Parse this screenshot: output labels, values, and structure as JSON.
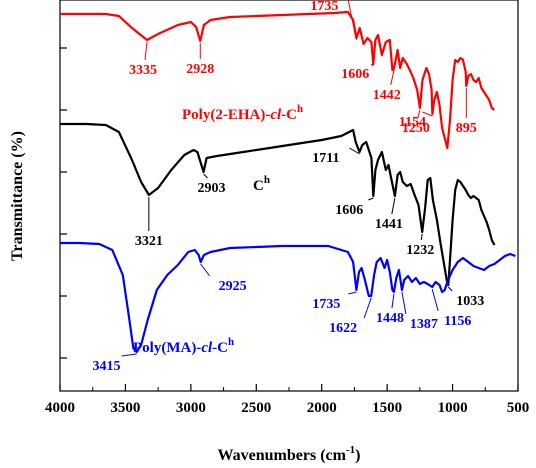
{
  "chart_data": {
    "type": "line",
    "xlabel": "Wavenumbers (cm",
    "xlabel_sup": "-1",
    "xlabel_tail": ")",
    "ylabel": "Transmittance (%)",
    "xlim": [
      4000,
      500
    ],
    "x_ticks": [
      "4000",
      "3500",
      "3000",
      "2500",
      "2000",
      "1500",
      "1000",
      "500"
    ],
    "grid": false,
    "series": [
      {
        "name_main": "Poly(2-EHA)-",
        "name_ital": "cl",
        "name_tail": "-C",
        "name_sup": "h",
        "color": "#ff0000",
        "points": [
          [
            4000,
            14
          ],
          [
            3800,
            14
          ],
          [
            3650,
            14
          ],
          [
            3550,
            16
          ],
          [
            3450,
            28
          ],
          [
            3335,
            40
          ],
          [
            3250,
            34
          ],
          [
            3100,
            25
          ],
          [
            3000,
            22
          ],
          [
            2960,
            27
          ],
          [
            2928,
            41
          ],
          [
            2900,
            25
          ],
          [
            2850,
            20
          ],
          [
            2700,
            17
          ],
          [
            2500,
            16
          ],
          [
            2300,
            15
          ],
          [
            2100,
            14
          ],
          [
            1900,
            13
          ],
          [
            1800,
            12
          ],
          [
            1760,
            20
          ],
          [
            1735,
            38
          ],
          [
            1710,
            28
          ],
          [
            1680,
            44
          ],
          [
            1650,
            38
          ],
          [
            1620,
            42
          ],
          [
            1606,
            64
          ],
          [
            1590,
            40
          ],
          [
            1570,
            35
          ],
          [
            1540,
            55
          ],
          [
            1510,
            42
          ],
          [
            1480,
            40
          ],
          [
            1460,
            70
          ],
          [
            1442,
            65
          ],
          [
            1420,
            50
          ],
          [
            1400,
            68
          ],
          [
            1380,
            58
          ],
          [
            1350,
            64
          ],
          [
            1320,
            72
          ],
          [
            1300,
            78
          ],
          [
            1270,
            90
          ],
          [
            1250,
            108
          ],
          [
            1230,
            80
          ],
          [
            1200,
            68
          ],
          [
            1180,
            74
          ],
          [
            1160,
            90
          ],
          [
            1154,
            114
          ],
          [
            1140,
            100
          ],
          [
            1120,
            92
          ],
          [
            1100,
            105
          ],
          [
            1080,
            128
          ],
          [
            1060,
            138
          ],
          [
            1040,
            148
          ],
          [
            1020,
            120
          ],
          [
            1000,
            80
          ],
          [
            980,
            60
          ],
          [
            960,
            62
          ],
          [
            940,
            58
          ],
          [
            920,
            60
          ],
          [
            900,
            72
          ],
          [
            895,
            86
          ],
          [
            880,
            76
          ],
          [
            860,
            74
          ],
          [
            840,
            80
          ],
          [
            820,
            82
          ],
          [
            800,
            78
          ],
          [
            780,
            88
          ],
          [
            760,
            92
          ],
          [
            740,
            96
          ],
          [
            720,
            100
          ],
          [
            700,
            108
          ],
          [
            680,
            110
          ]
        ],
        "annotations": [
          {
            "text": "3335",
            "x": 3335
          },
          {
            "text": "2928",
            "x": 2928
          },
          {
            "text": "1735",
            "x": 1735
          },
          {
            "text": "1606",
            "x": 1606
          },
          {
            "text": "1442",
            "x": 1442
          },
          {
            "text": "1250",
            "x": 1250
          },
          {
            "text": "1154",
            "x": 1154
          },
          {
            "text": "895",
            "x": 895
          }
        ]
      },
      {
        "name_main": "C",
        "name_ital": "",
        "name_tail": "",
        "name_sup": "h",
        "color": "#000000",
        "points": [
          [
            4000,
            124
          ],
          [
            3800,
            124
          ],
          [
            3650,
            125
          ],
          [
            3550,
            132
          ],
          [
            3450,
            160
          ],
          [
            3380,
            182
          ],
          [
            3321,
            195
          ],
          [
            3250,
            188
          ],
          [
            3150,
            170
          ],
          [
            3050,
            155
          ],
          [
            2980,
            150
          ],
          [
            2950,
            152
          ],
          [
            2903,
            172
          ],
          [
            2880,
            158
          ],
          [
            2800,
            156
          ],
          [
            2600,
            152
          ],
          [
            2400,
            148
          ],
          [
            2200,
            144
          ],
          [
            2000,
            140
          ],
          [
            1850,
            136
          ],
          [
            1760,
            130
          ],
          [
            1740,
            142
          ],
          [
            1711,
            152
          ],
          [
            1690,
            145
          ],
          [
            1660,
            142
          ],
          [
            1620,
            158
          ],
          [
            1606,
            196
          ],
          [
            1590,
            170
          ],
          [
            1570,
            160
          ],
          [
            1540,
            152
          ],
          [
            1510,
            170
          ],
          [
            1490,
            165
          ],
          [
            1470,
            178
          ],
          [
            1441,
            196
          ],
          [
            1420,
            175
          ],
          [
            1400,
            172
          ],
          [
            1380,
            182
          ],
          [
            1350,
            186
          ],
          [
            1320,
            184
          ],
          [
            1290,
            195
          ],
          [
            1260,
            205
          ],
          [
            1232,
            232
          ],
          [
            1210,
            208
          ],
          [
            1190,
            180
          ],
          [
            1170,
            178
          ],
          [
            1150,
            200
          ],
          [
            1120,
            220
          ],
          [
            1090,
            245
          ],
          [
            1060,
            268
          ],
          [
            1045,
            280
          ],
          [
            1033,
            285
          ],
          [
            1020,
            260
          ],
          [
            1000,
            220
          ],
          [
            980,
            190
          ],
          [
            960,
            180
          ],
          [
            940,
            182
          ],
          [
            920,
            186
          ],
          [
            900,
            190
          ],
          [
            880,
            195
          ],
          [
            860,
            198
          ],
          [
            840,
            196
          ],
          [
            800,
            200
          ],
          [
            780,
            210
          ],
          [
            760,
            216
          ],
          [
            740,
            222
          ],
          [
            720,
            230
          ],
          [
            700,
            240
          ],
          [
            680,
            245
          ]
        ],
        "annotations": [
          {
            "text": "3321",
            "x": 3321
          },
          {
            "text": "2903",
            "x": 2903
          },
          {
            "text": "1711",
            "x": 1711
          },
          {
            "text": "1606",
            "x": 1606
          },
          {
            "text": "1441",
            "x": 1441
          },
          {
            "text": "1232",
            "x": 1232
          },
          {
            "text": "1033",
            "x": 1033
          }
        ]
      },
      {
        "name_main": "Poly(MA)-",
        "name_ital": "cl",
        "name_tail": "-C",
        "name_sup": "h",
        "color": "#0000ff",
        "points": [
          [
            4000,
            243
          ],
          [
            3850,
            243
          ],
          [
            3700,
            244
          ],
          [
            3600,
            250
          ],
          [
            3520,
            275
          ],
          [
            3470,
            320
          ],
          [
            3440,
            348
          ],
          [
            3415,
            352
          ],
          [
            3380,
            345
          ],
          [
            3330,
            320
          ],
          [
            3260,
            290
          ],
          [
            3180,
            275
          ],
          [
            3100,
            265
          ],
          [
            3020,
            252
          ],
          [
            2970,
            250
          ],
          [
            2940,
            255
          ],
          [
            2925,
            262
          ],
          [
            2900,
            255
          ],
          [
            2850,
            252
          ],
          [
            2700,
            248
          ],
          [
            2500,
            247
          ],
          [
            2300,
            246
          ],
          [
            2100,
            246
          ],
          [
            1950,
            246
          ],
          [
            1800,
            252
          ],
          [
            1760,
            262
          ],
          [
            1735,
            290
          ],
          [
            1715,
            272
          ],
          [
            1695,
            268
          ],
          [
            1670,
            280
          ],
          [
            1640,
            296
          ],
          [
            1622,
            296
          ],
          [
            1600,
            275
          ],
          [
            1580,
            262
          ],
          [
            1550,
            258
          ],
          [
            1520,
            268
          ],
          [
            1500,
            260
          ],
          [
            1480,
            272
          ],
          [
            1460,
            290
          ],
          [
            1448,
            292
          ],
          [
            1430,
            278
          ],
          [
            1410,
            270
          ],
          [
            1400,
            278
          ],
          [
            1387,
            290
          ],
          [
            1370,
            280
          ],
          [
            1340,
            276
          ],
          [
            1310,
            282
          ],
          [
            1280,
            278
          ],
          [
            1250,
            284
          ],
          [
            1220,
            282
          ],
          [
            1190,
            284
          ],
          [
            1156,
            287
          ],
          [
            1130,
            282
          ],
          [
            1100,
            285
          ],
          [
            1080,
            292
          ],
          [
            1060,
            290
          ],
          [
            1040,
            282
          ],
          [
            1000,
            270
          ],
          [
            960,
            262
          ],
          [
            920,
            258
          ],
          [
            880,
            262
          ],
          [
            840,
            266
          ],
          [
            800,
            268
          ],
          [
            760,
            270
          ],
          [
            720,
            266
          ],
          [
            680,
            264
          ],
          [
            640,
            260
          ],
          [
            600,
            256
          ],
          [
            560,
            254
          ],
          [
            520,
            256
          ]
        ],
        "annotations": [
          {
            "text": "3415",
            "x": 3415
          },
          {
            "text": "2925",
            "x": 2925
          },
          {
            "text": "1735",
            "x": 1735
          },
          {
            "text": "1622",
            "x": 1622
          },
          {
            "text": "1448",
            "x": 1448
          },
          {
            "text": "1387",
            "x": 1387
          },
          {
            "text": "1156",
            "x": 1156
          }
        ]
      }
    ]
  }
}
